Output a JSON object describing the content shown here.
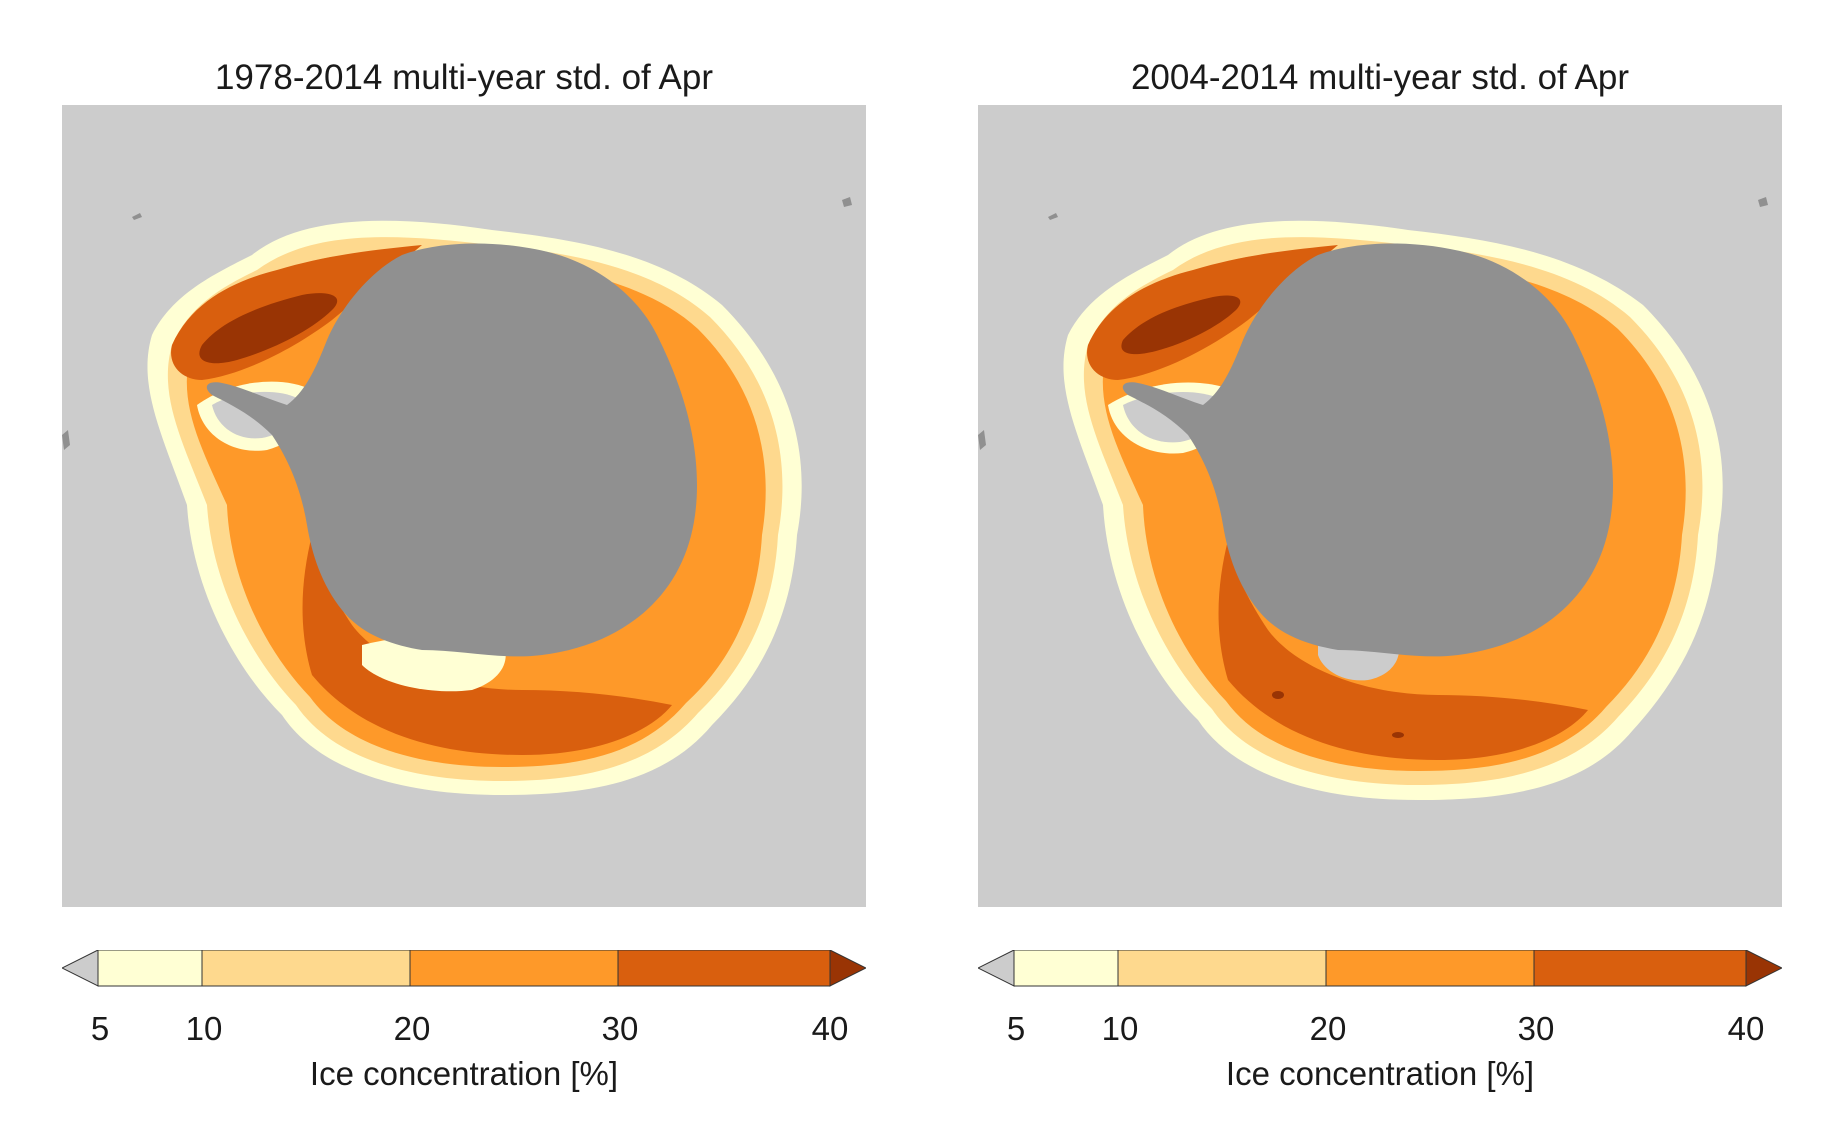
{
  "panels": [
    {
      "title": "1978-2014 multi-year std. of Apr"
    },
    {
      "title": "2004-2014 multi-year std. of Apr"
    }
  ],
  "colorbar": {
    "title": "Ice concentration [%]",
    "ticks": [
      "5",
      "10",
      "20",
      "30",
      "40"
    ],
    "tick_values": [
      5,
      10,
      20,
      30,
      40
    ],
    "bins": [
      {
        "range": "<5",
        "color": "#cccccc"
      },
      {
        "range": "5-10",
        "color": "#ffffd4"
      },
      {
        "range": "10-20",
        "color": "#fed98e"
      },
      {
        "range": "20-30",
        "color": "#fe9929"
      },
      {
        "range": "30-40",
        "color": "#d95f0e"
      },
      {
        "range": ">40",
        "color": "#993404"
      }
    ]
  },
  "colors": {
    "ocean_background": "#cccccc",
    "land": "#909090"
  }
}
